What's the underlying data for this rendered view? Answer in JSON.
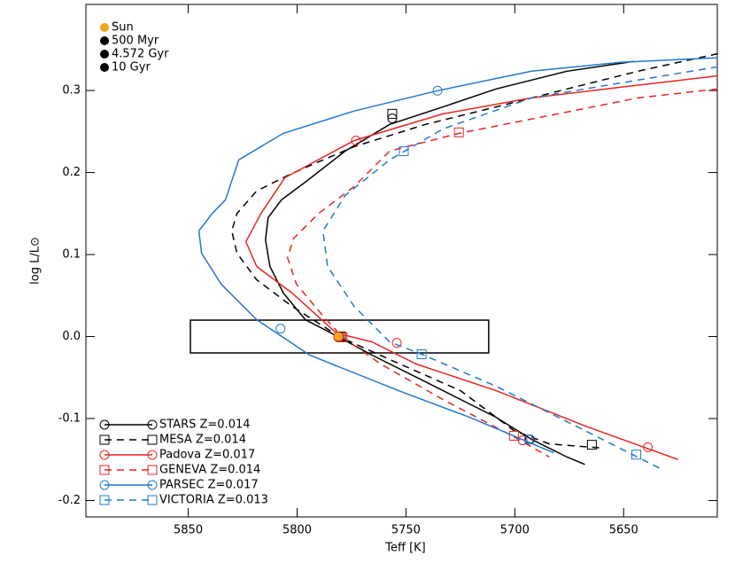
{
  "chart_data": {
    "type": "line",
    "xlabel": "Teff [K]",
    "ylabel": "log L/L⊙",
    "xlim": [
      5897,
      5607
    ],
    "ylim": [
      -0.22,
      0.405
    ],
    "xticks": [
      5850,
      5800,
      5750,
      5700,
      5650
    ],
    "yticks": [
      -0.2,
      -0.1,
      {
        "value": 0,
        "label": "0.0"
      },
      0.1,
      0.2,
      0.3
    ],
    "box": {
      "x": [
        5849,
        5712
      ],
      "y": [
        -0.02,
        0.02
      ]
    },
    "sun": {
      "x": 5781,
      "y": 0,
      "color": "#f7a11a"
    },
    "age_legend": [
      {
        "name": "Sun",
        "color": "#f7a11a"
      },
      {
        "name": "500 Myr",
        "color": "#000000"
      },
      {
        "name": "4.572 Gyr",
        "color": "#000000"
      },
      {
        "name": "10 Gyr",
        "color": "#000000"
      }
    ],
    "series": [
      {
        "name": "STARS  Z=0.014",
        "color": "#000000",
        "dash": false,
        "marker": "circle",
        "x": [
          5645.4,
          5676,
          5708.6,
          5733,
          5757.5,
          5777.9,
          5796.2,
          5807.2,
          5813.3,
          5814.5,
          5812.5,
          5806.3,
          5796.2,
          5782,
          5765.6,
          5741,
          5708.6,
          5692.3,
          5676,
          5667.8
        ],
        "y": [
          0.3355,
          0.3236,
          0.302,
          0.28,
          0.2587,
          0.2262,
          0.1883,
          0.1667,
          0.145,
          0.118,
          0.0855,
          0.053,
          0.0206,
          0.001,
          -0.0227,
          -0.0552,
          -0.0985,
          -0.1255,
          -0.147,
          -0.156
        ],
        "markers": {
          "x": [
            5756.3,
            5780.7,
            5693.1
          ],
          "y": [
            0.266,
            0,
            -0.1255
          ]
        }
      },
      {
        "name": "MESA  Z=0.014",
        "color": "#000000",
        "dash": true,
        "marker": "square",
        "x": [
          5606.7,
          5643.4,
          5676,
          5708.6,
          5741,
          5773.8,
          5802.3,
          5818.6,
          5827.6,
          5830,
          5827.6,
          5818.6,
          5802.3,
          5780,
          5757.5,
          5724.9,
          5700.4,
          5684.1,
          5659.7
        ],
        "y": [
          0.345,
          0.3236,
          0.302,
          0.28,
          0.2587,
          0.2316,
          0.199,
          0.1775,
          0.15,
          0.1288,
          0.1017,
          0.0693,
          0.0368,
          -0.001,
          -0.028,
          -0.066,
          -0.1147,
          -0.131,
          -0.136
        ],
        "markers": {
          "x": [
            5756.3,
            5779.9,
            5664.6
          ],
          "y": [
            0.2716,
            0,
            -0.132
          ]
        }
      },
      {
        "name": "Padova  Z=0.017",
        "color": "#e8251f",
        "dash": false,
        "marker": "circle",
        "x": [
          5606.7,
          5651.5,
          5692.3,
          5733,
          5773.8,
          5805.6,
          5816.6,
          5823.5,
          5818.6,
          5802.3,
          5782,
          5765.6,
          5745.3,
          5708.6,
          5667.8,
          5625
        ],
        "y": [
          0.318,
          0.304,
          0.291,
          0.2716,
          0.239,
          0.1937,
          0.15,
          0.1158,
          0.0855,
          0.053,
          0.0043,
          -0.0065,
          -0.0335,
          -0.066,
          -0.109,
          -0.15
        ],
        "markers": {
          "x": [
            5773,
            5781.1,
            5754.2,
            5696.4,
            5638.9
          ],
          "y": [
            0.239,
            -0.001,
            -0.0076,
            -0.1266,
            -0.135
          ]
        }
      },
      {
        "name": "GENEVA  Z=0.014",
        "color": "#e8251f",
        "dash": true,
        "marker": "square",
        "x": [
          5606.7,
          5643.4,
          5684.1,
          5725.7,
          5757.5,
          5773.8,
          5790.1,
          5801.5,
          5804.4,
          5800.3,
          5790.1,
          5779.1,
          5761.6,
          5733,
          5700.4,
          5684.1
        ],
        "y": [
          0.302,
          0.291,
          0.2695,
          0.2478,
          0.2262,
          0.183,
          0.15,
          0.12,
          0.0963,
          0.0639,
          0.0314,
          -0.001,
          -0.0335,
          -0.0768,
          -0.1223,
          -0.147
        ],
        "markers": {
          "x": [
            5725.7,
            5779.1,
            5700.4
          ],
          "y": [
            0.249,
            -0.001,
            -0.121
          ]
        }
      },
      {
        "name": "PARSEC  Z=0.017",
        "color": "#1f78d1",
        "dash": false,
        "marker": "circle",
        "x": [
          5606.7,
          5651.5,
          5692.3,
          5735.5,
          5773.8,
          5806.4,
          5826.8,
          5832.9,
          5839,
          5845.1,
          5843.9,
          5834.9,
          5818.6,
          5794.2,
          5753.4,
          5720.8,
          5682.1
        ],
        "y": [
          0.34,
          0.3344,
          0.3236,
          0.2998,
          0.275,
          0.2478,
          0.2154,
          0.1667,
          0.15,
          0.1288,
          0.1017,
          0.0639,
          0.0206,
          -0.0227,
          -0.066,
          -0.0985,
          -0.1418
        ],
        "markers": {
          "x": [
            5735.5,
            5807.6,
            5693.5
          ],
          "y": [
            0.2998,
            0.0097,
            -0.1255
          ]
        }
      },
      {
        "name": "VICTORIA  Z=0.013",
        "color": "#1f78d1",
        "dash": true,
        "marker": "square",
        "x": [
          5606.7,
          5643.4,
          5692.3,
          5733,
          5757.5,
          5777.9,
          5788.1,
          5786,
          5773.8,
          5757.5,
          5742.8,
          5708.6,
          5671.9,
          5633.2
        ],
        "y": [
          0.329,
          0.3128,
          0.291,
          0.2532,
          0.2154,
          0.172,
          0.1288,
          0.0855,
          0.0368,
          -0.0065,
          -0.0216,
          -0.0606,
          -0.1093,
          -0.161
        ],
        "markers": {
          "x": [
            5751,
            5742.8,
            5644.2
          ],
          "y": [
            0.226,
            -0.0216,
            -0.144
          ]
        }
      }
    ]
  }
}
